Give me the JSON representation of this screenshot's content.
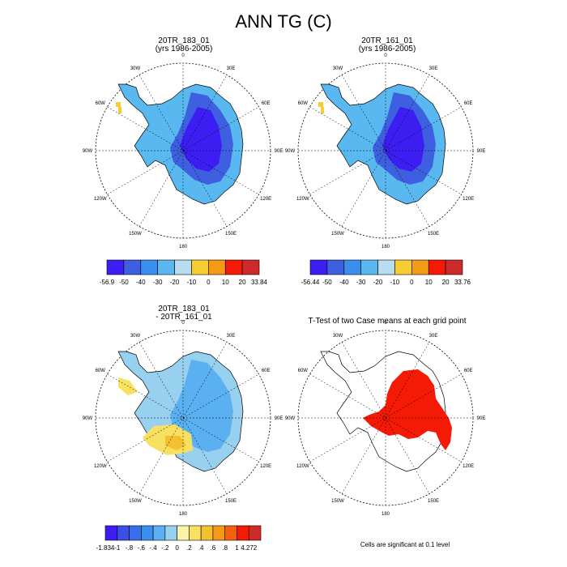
{
  "title": "ANN TG (C)",
  "panels": [
    {
      "id": "p1",
      "title_line1": "20TR_183_01",
      "title_line2": "(yrs 1986-2005)"
    },
    {
      "id": "p2",
      "title_line1": "20TR_161_01",
      "title_line2": "(yrs 1986-2005)"
    },
    {
      "id": "p3",
      "title_line1": "20TR_183_01",
      "title_line2": "- 20TR_161_01"
    },
    {
      "id": "p4",
      "title_line1": "T-Test of two Case means at each grid point",
      "title_line2": ""
    }
  ],
  "lon_labels": [
    "0",
    "30E",
    "60E",
    "90E",
    "120E",
    "150E",
    "180",
    "150W",
    "120W",
    "90W",
    "60W",
    "30W"
  ],
  "colorbars": [
    {
      "id": "cb1",
      "labels": [
        "-56.9",
        "-50",
        "-40",
        "-30",
        "-20",
        "-10",
        "0",
        "10",
        "20",
        "33.84"
      ],
      "colors": [
        "#3c1ef2",
        "#3e5fe0",
        "#3a8ef0",
        "#5ab8f0",
        "#b8dcf0",
        "#f5cc32",
        "#f59a14",
        "#f41a05",
        "#cf2a2a"
      ]
    },
    {
      "id": "cb2",
      "labels": [
        "-56.44",
        "-50",
        "-40",
        "-30",
        "-20",
        "-10",
        "0",
        "10",
        "20",
        "33.76"
      ],
      "colors": [
        "#3c1ef2",
        "#3e5fe0",
        "#3a8ef0",
        "#5ab8f0",
        "#b8dcf0",
        "#f5cc32",
        "#f59a14",
        "#f41a05",
        "#cf2a2a"
      ]
    },
    {
      "id": "cb3",
      "labels": [
        "-1.834",
        "-1",
        "-.8",
        "-.6",
        "-.4",
        "-.2",
        "0",
        ".2",
        ".4",
        ".6",
        ".8",
        "1",
        "4.272"
      ],
      "colors": [
        "#3c1ef2",
        "#3a4ee8",
        "#3a6ee8",
        "#3a8ef0",
        "#5ab0f0",
        "#98d0f0",
        "#f8f4a8",
        "#f8e060",
        "#f5c030",
        "#f59a14",
        "#f46010",
        "#f41a05",
        "#cf2a2a"
      ]
    }
  ],
  "footnote": "Cells are significant at 0.1 level"
}
